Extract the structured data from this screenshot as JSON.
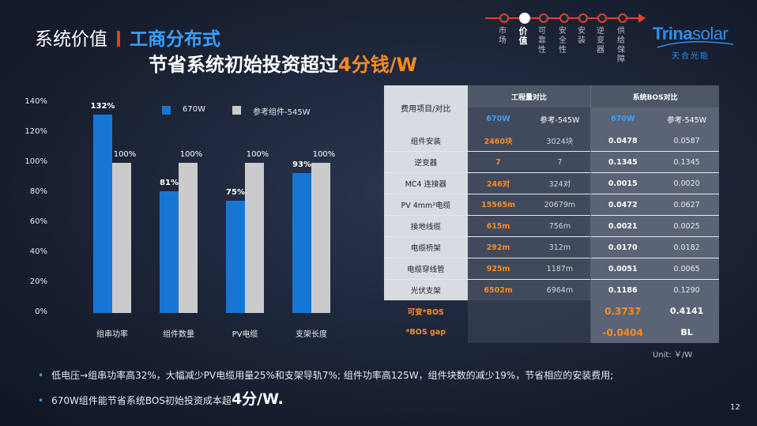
{
  "title": {
    "section": "系统价值",
    "topic": "工商分布式",
    "subtitle_prefix": "节省系统初始投资超过",
    "subtitle_highlight": "4分钱/W"
  },
  "timeline": {
    "items": [
      {
        "label": "市场",
        "active": false
      },
      {
        "label": "价值",
        "active": true
      },
      {
        "label": "可靠性",
        "active": false
      },
      {
        "label": "安全性",
        "active": false
      },
      {
        "label": "安装",
        "active": false
      },
      {
        "label": "逆变器",
        "active": false
      },
      {
        "label": "供给保障",
        "active": false
      }
    ]
  },
  "logo": {
    "name_bold": "Trina",
    "name_thin": "solar",
    "cn": "天合光能",
    "color": "#2a8ff0"
  },
  "chart_data": {
    "type": "bar",
    "categories": [
      "组串功率",
      "组件数量",
      "PV电缆",
      "支架长度"
    ],
    "series": [
      {
        "name": "670W",
        "values": [
          132,
          81,
          75,
          93
        ],
        "labels": [
          "132%",
          "81%",
          "75%",
          "93%"
        ],
        "color": "#1776d4"
      },
      {
        "name": "参考组件-545W",
        "values": [
          100,
          100,
          100,
          100
        ],
        "labels": [
          "100%",
          "100%",
          "100%",
          "100%"
        ],
        "color": "#cbcbcb"
      }
    ],
    "yticks": [
      "0%",
      "20%",
      "40%",
      "60%",
      "80%",
      "100%",
      "120%",
      "140%"
    ],
    "ylim": [
      0,
      140
    ],
    "legend": "top"
  },
  "table": {
    "header_item": "费用项目/对比",
    "group_eng": "工程量对比",
    "group_bos": "系统BOS对比",
    "sub_670": "670W",
    "sub_ref": "参考-545W",
    "rows": [
      {
        "item": "组件安装",
        "e670": "2460块",
        "eref": "3024块",
        "b670": "0.0478",
        "bref": "0.0587"
      },
      {
        "item": "逆变器",
        "e670": "7",
        "eref": "7",
        "b670": "0.1345",
        "bref": "0.1345"
      },
      {
        "item": "MC4 连接器",
        "e670": "246对",
        "eref": "324对",
        "b670": "0.0015",
        "bref": "0.0020"
      },
      {
        "item": "PV 4mm²电缆",
        "e670": "15565m",
        "eref": "20679m",
        "b670": "0.0472",
        "bref": "0.0627"
      },
      {
        "item": "接地线缆",
        "e670": "615m",
        "eref": "756m",
        "b670": "0.0021",
        "bref": "0.0025"
      },
      {
        "item": "电缆桥架",
        "e670": "292m",
        "eref": "312m",
        "b670": "0.0170",
        "bref": "0.0182"
      },
      {
        "item": "电缆穿线管",
        "e670": "925m",
        "eref": "1187m",
        "b670": "0.0051",
        "bref": "0.0065"
      },
      {
        "item": "光伏支架",
        "e670": "6502m",
        "eref": "6964m",
        "b670": "0.1186",
        "bref": "0.1290"
      }
    ],
    "sum_rows": [
      {
        "item": "可变*BOS",
        "b670": "0.3737",
        "bref": "0.4141"
      },
      {
        "item": "*BOS gap",
        "b670": "-0.0404",
        "bref": "BL"
      }
    ],
    "unit": "Unit: ￥/W"
  },
  "bullets": {
    "line1": "低电压→组串功率高32%，大幅减少PV电缆用量25%和支架导轨7%; 组件功率高125W，组件块数的减少19%，节省相应的安装费用;",
    "line2_prefix": "670W组件能节省系统BOS初始投资成本超",
    "line2_highlight": "4分/W."
  },
  "page_number": "12"
}
